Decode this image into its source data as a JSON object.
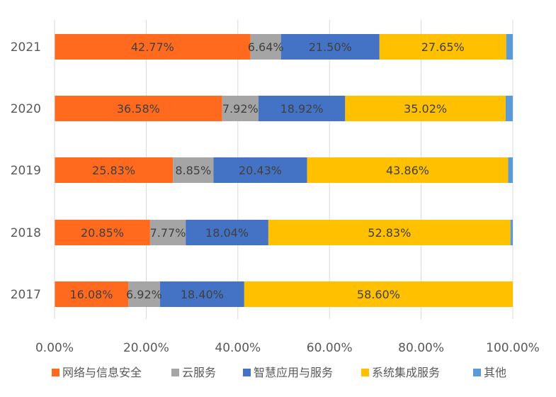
{
  "chart_data": {
    "type": "bar",
    "orientation": "horizontal",
    "stacked": true,
    "percent_stacked": true,
    "title": "",
    "xlabel": "",
    "ylabel": "",
    "categories": [
      "2021",
      "2020",
      "2019",
      "2018",
      "2017"
    ],
    "xlim": [
      0,
      100
    ],
    "x_ticks": [
      "0.00%",
      "20.00%",
      "40.00%",
      "60.00%",
      "80.00%",
      "100.00%"
    ],
    "grid": "vertical",
    "legend_position": "bottom",
    "series": [
      {
        "name": "网络与信息安全",
        "color": "#FF6A1F",
        "values": [
          42.77,
          36.58,
          25.83,
          20.85,
          16.08
        ],
        "labels": [
          "42.77%",
          "36.58%",
          "25.83%",
          "20.85%",
          "16.08%"
        ]
      },
      {
        "name": "云服务",
        "color": "#A5A5A5",
        "values": [
          6.64,
          7.92,
          8.85,
          7.77,
          6.92
        ],
        "labels": [
          "6.64%",
          "7.92%",
          "8.85%",
          "7.77%",
          "6.92%"
        ]
      },
      {
        "name": "智慧应用与服务",
        "color": "#4472C4",
        "values": [
          21.5,
          18.92,
          20.43,
          18.04,
          18.4
        ],
        "labels": [
          "21.50%",
          "18.92%",
          "20.43%",
          "18.04%",
          "18.40%"
        ]
      },
      {
        "name": "系统集成服务",
        "color": "#FFC000",
        "values": [
          27.65,
          35.02,
          43.86,
          52.83,
          58.6
        ],
        "labels": [
          "27.65%",
          "35.02%",
          "43.86%",
          "52.83%",
          "58.60%"
        ]
      },
      {
        "name": "其他",
        "color": "#5B9BD5",
        "values": [
          1.44,
          1.56,
          1.03,
          0.51,
          0.0
        ],
        "labels": [
          "",
          "",
          "",
          "",
          ""
        ]
      }
    ]
  }
}
